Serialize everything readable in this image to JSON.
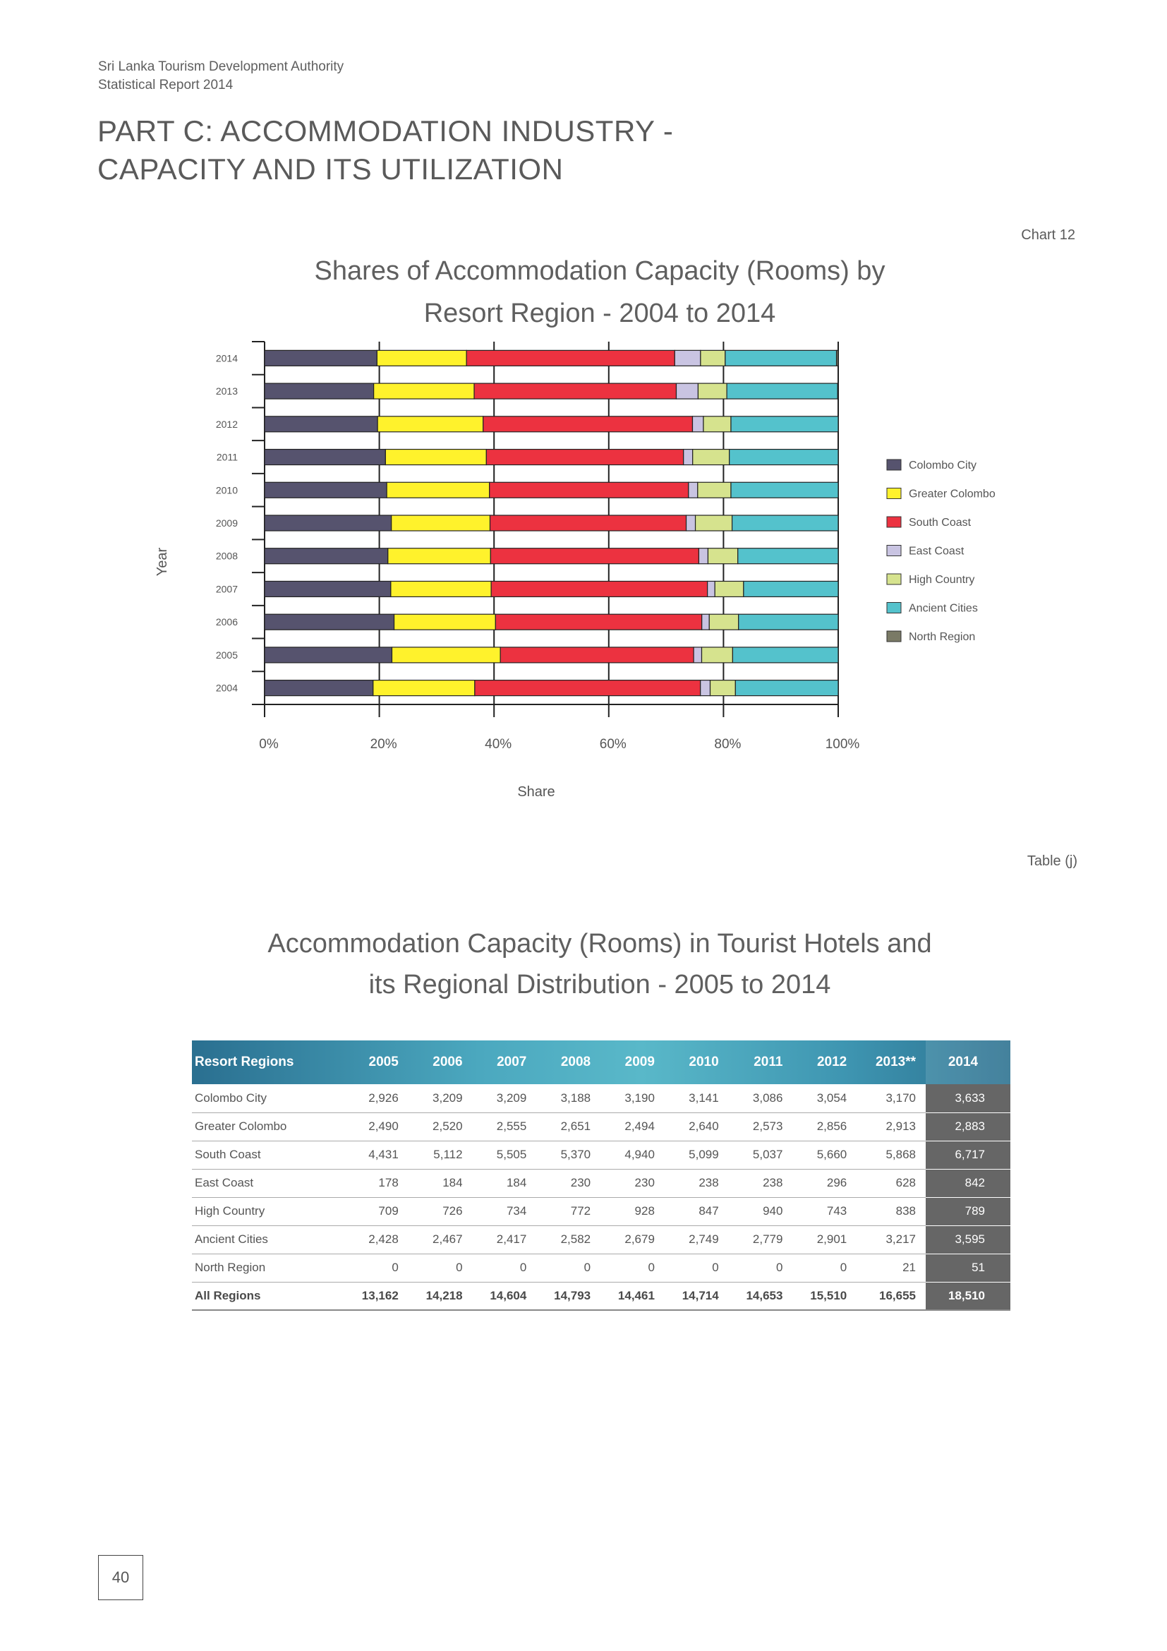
{
  "header": {
    "org": "Sri Lanka Tourism Development Authority",
    "report": "Statistical Report 2014"
  },
  "part_title": {
    "line1": "PART C: ACCOMMODATION INDUSTRY -",
    "line2": "CAPACITY AND ITS UTILIZATION"
  },
  "chart_label": "Chart 12",
  "table_label": "Table (j)",
  "chart_data": {
    "type": "bar",
    "orientation": "horizontal",
    "stacked": "percent",
    "title_line1": "Shares of Accommodation Capacity (Rooms) by",
    "title_line2": "Resort Region - 2004 to 2014",
    "xlabel": "Share",
    "ylabel": "Year",
    "xlim": [
      0,
      100
    ],
    "x_ticks": [
      "0%",
      "20%",
      "40%",
      "60%",
      "80%",
      "100%"
    ],
    "legend_position": "right",
    "categories": [
      "2014",
      "2013",
      "2012",
      "2011",
      "2010",
      "2009",
      "2008",
      "2007",
      "2006",
      "2005",
      "2004"
    ],
    "series": [
      {
        "name": "Colombo City",
        "color": "#56536e",
        "values": [
          19.6,
          19.0,
          19.7,
          21.1,
          21.3,
          22.1,
          21.5,
          22.0,
          22.6,
          22.2,
          18.9
        ]
      },
      {
        "name": "Greater Colombo",
        "color": "#fff22c",
        "values": [
          15.6,
          17.5,
          18.4,
          17.6,
          17.9,
          17.2,
          17.9,
          17.5,
          17.7,
          18.9,
          17.7
        ]
      },
      {
        "name": "South Coast",
        "color": "#ec3240",
        "values": [
          36.3,
          35.2,
          36.5,
          34.4,
          34.7,
          34.2,
          36.3,
          37.7,
          36.0,
          33.7,
          39.3
        ]
      },
      {
        "name": "East Coast",
        "color": "#c9c4e2",
        "values": [
          4.5,
          3.8,
          1.9,
          1.6,
          1.6,
          1.6,
          1.6,
          1.3,
          1.3,
          1.4,
          1.7
        ]
      },
      {
        "name": "High Country",
        "color": "#d6e38e",
        "values": [
          4.3,
          5.0,
          4.8,
          6.4,
          5.8,
          6.4,
          5.2,
          5.0,
          5.1,
          5.4,
          4.4
        ]
      },
      {
        "name": "Ancient Cities",
        "color": "#54c2cc",
        "values": [
          19.4,
          19.3,
          18.7,
          19.0,
          18.7,
          18.5,
          17.5,
          16.5,
          17.4,
          18.4,
          17.9
        ]
      },
      {
        "name": "North Region",
        "color": "#7a7a66",
        "values": [
          0.3,
          0.1,
          0.0,
          0.0,
          0.0,
          0.0,
          0.0,
          0.0,
          0.0,
          0.0,
          0.0
        ]
      }
    ]
  },
  "table": {
    "title_line1": "Accommodation Capacity (Rooms) in Tourist Hotels and",
    "title_line2": "its Regional Distribution - 2005 to 2014",
    "header": [
      "Resort Regions",
      "2005",
      "2006",
      "2007",
      "2008",
      "2009",
      "2010",
      "2011",
      "2012",
      "2013**",
      "2014"
    ],
    "rows": [
      [
        "Colombo City",
        "2,926",
        "3,209",
        "3,209",
        "3,188",
        "3,190",
        "3,141",
        "3,086",
        "3,054",
        "3,170",
        "3,633"
      ],
      [
        "Greater Colombo",
        "2,490",
        "2,520",
        "2,555",
        "2,651",
        "2,494",
        "2,640",
        "2,573",
        "2,856",
        "2,913",
        "2,883"
      ],
      [
        "South Coast",
        "4,431",
        "5,112",
        "5,505",
        "5,370",
        "4,940",
        "5,099",
        "5,037",
        "5,660",
        "5,868",
        "6,717"
      ],
      [
        "East Coast",
        "178",
        "184",
        "184",
        "230",
        "230",
        "238",
        "238",
        "296",
        "628",
        "842"
      ],
      [
        "High Country",
        "709",
        "726",
        "734",
        "772",
        "928",
        "847",
        "940",
        "743",
        "838",
        "789"
      ],
      [
        "Ancient Cities",
        "2,428",
        "2,467",
        "2,417",
        "2,582",
        "2,679",
        "2,749",
        "2,779",
        "2,901",
        "3,217",
        "3,595"
      ],
      [
        "North Region",
        "0",
        "0",
        "0",
        "0",
        "0",
        "0",
        "0",
        "0",
        "21",
        "51"
      ]
    ],
    "total": [
      "All Regions",
      "13,162",
      "14,218",
      "14,604",
      "14,793",
      "14,461",
      "14,714",
      "14,653",
      "15,510",
      "16,655",
      "18,510"
    ]
  },
  "page_number": "40"
}
